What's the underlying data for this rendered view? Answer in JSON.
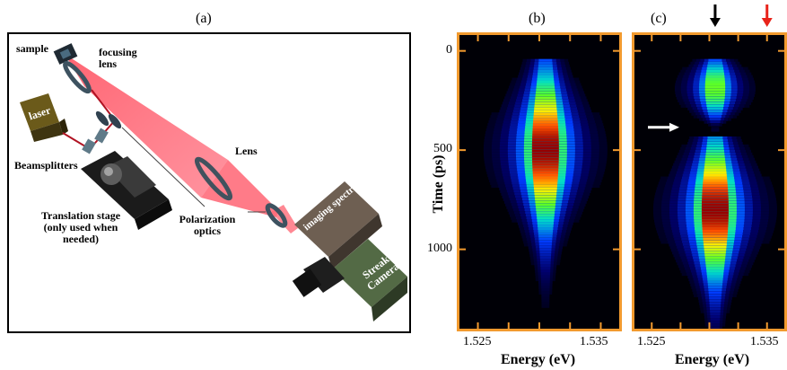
{
  "panels": {
    "a": "(a)",
    "b": "(b)",
    "c": "(c)"
  },
  "setup": {
    "sample": "sample",
    "focusing_lens_1": "focusing",
    "focusing_lens_2": "lens",
    "laser": "laser",
    "lens": "Lens",
    "beamsplitters": "Beamsplitters",
    "translation_1": "Translation stage",
    "translation_2": "(only used when",
    "translation_3": "needed)",
    "polarization_1": "Polarization",
    "polarization_2": "optics",
    "spectrometer": "imaging spectrometer",
    "streak_1": "Streak",
    "streak_2": "Camera"
  },
  "chart_data": [
    {
      "type": "heatmap",
      "panel": "(b)",
      "xlabel": "Energy (eV)",
      "ylabel": "Time (ps)",
      "x_ticks": [
        "1.525",
        "1.535"
      ],
      "y_ticks": [
        "0",
        "500",
        "1000"
      ],
      "xlim": [
        1.5235,
        1.5365
      ],
      "ylim": [
        1400,
        -80
      ],
      "emission": {
        "center_energy": 1.5305,
        "onset_ps": 40,
        "peak_ps": 500,
        "end_ps": 1400
      }
    },
    {
      "type": "heatmap",
      "panel": "(c)",
      "xlabel": "Energy (eV)",
      "ylabel": "",
      "x_ticks": [
        "1.525",
        "1.535"
      ],
      "y_ticks": [],
      "xlim": [
        1.5235,
        1.5365
      ],
      "ylim": [
        1400,
        -80
      ],
      "emission": {
        "center_energy": 1.5305,
        "onset_ps": 40,
        "gap_ps": 385,
        "peak_ps": 800,
        "end_ps": 1400
      },
      "arrows": [
        {
          "color": "#000000",
          "energy": 1.5305,
          "direction": "down"
        },
        {
          "color": "#e8231a",
          "energy": 1.535,
          "direction": "down"
        },
        {
          "color": "#ffffff",
          "time_ps": 385,
          "direction": "right"
        }
      ]
    }
  ],
  "colors": {
    "frame": "#f29a2e",
    "beam": "#ff6070"
  }
}
